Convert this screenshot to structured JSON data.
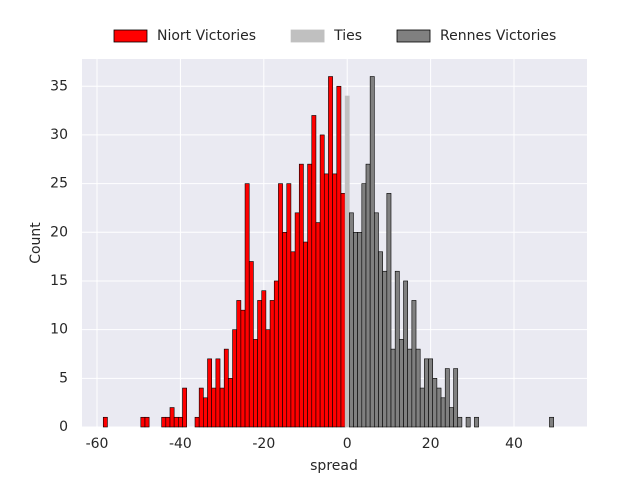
{
  "chart_data": {
    "type": "histogram",
    "x_label": "spread",
    "y_label": "Count",
    "xlim": [
      -63.6,
      57.5
    ],
    "ylim": [
      0,
      37.8
    ],
    "xticks": [
      -60,
      -40,
      -20,
      0,
      20,
      40
    ],
    "yticks": [
      0,
      5,
      10,
      15,
      20,
      25,
      30,
      35
    ],
    "grid": true,
    "legend": "top",
    "series": [
      {
        "name": "Niort Victories",
        "color": "#ff0000",
        "edgecolor": "#000000",
        "bins": [
          -58.5,
          -57.5,
          -56.5,
          -55.5,
          -54.5,
          -53.5,
          -52.5,
          -51.5,
          -50.5,
          -49.5,
          -48.5,
          -47.5,
          -46.5,
          -45.5,
          -44.5,
          -43.5,
          -42.5,
          -41.5,
          -40.5,
          -39.5,
          -38.5,
          -37.5,
          -36.5,
          -35.5,
          -34.5,
          -33.5,
          -32.5,
          -31.5,
          -30.5,
          -29.5,
          -28.5,
          -27.5,
          -26.5,
          -25.5,
          -24.5,
          -23.5,
          -22.5,
          -21.5,
          -20.5,
          -19.5,
          -18.5,
          -17.5,
          -16.5,
          -15.5,
          -14.5,
          -13.5,
          -12.5,
          -11.5,
          -10.5,
          -9.5,
          -8.5,
          -7.5,
          -6.5,
          -5.5,
          -4.5,
          -3.5,
          -2.5,
          -1.5,
          -0.5
        ],
        "values": [
          1,
          0,
          0,
          0,
          0,
          0,
          0,
          0,
          0,
          1,
          1,
          0,
          0,
          0,
          1,
          1,
          2,
          1,
          1,
          4,
          0,
          0,
          1,
          4,
          3,
          7,
          4,
          7,
          4,
          8,
          5,
          10,
          13,
          12,
          25,
          17,
          9,
          13,
          14,
          10,
          13,
          15,
          25,
          20,
          25,
          18,
          22,
          27,
          19,
          27,
          32,
          21,
          30,
          26,
          36,
          26,
          35,
          24
        ]
      },
      {
        "name": "Ties",
        "color": "#c0c0c0",
        "edgecolor": "#c0c0c0",
        "bins": [
          -0.5,
          0.5
        ],
        "values": [
          34
        ]
      },
      {
        "name": "Rennes Victories",
        "color": "#808080",
        "edgecolor": "#000000",
        "bins": [
          0.5,
          1.5,
          2.5,
          3.5,
          4.5,
          5.5,
          6.5,
          7.5,
          8.5,
          9.5,
          10.5,
          11.5,
          12.5,
          13.5,
          14.5,
          15.5,
          16.5,
          17.5,
          18.5,
          19.5,
          20.5,
          21.5,
          22.5,
          23.5,
          24.5,
          25.5,
          26.5,
          27.5,
          28.5,
          29.5,
          30.5,
          31.5,
          32.5,
          33.5,
          34.5,
          35.5,
          36.5,
          37.5,
          38.5,
          39.5,
          40.5,
          41.5,
          42.5,
          43.5,
          44.5,
          45.5,
          46.5,
          47.5,
          48.5,
          49.5
        ],
        "values": [
          22,
          20,
          20,
          25,
          27,
          36,
          22,
          18,
          16,
          24,
          8,
          16,
          9,
          15,
          8,
          13,
          8,
          4,
          7,
          7,
          5,
          4,
          3,
          6,
          2,
          6,
          1,
          0,
          1,
          0,
          1,
          0,
          0,
          0,
          0,
          0,
          0,
          0,
          0,
          0,
          0,
          0,
          0,
          0,
          0,
          0,
          0,
          0,
          1
        ]
      }
    ]
  }
}
